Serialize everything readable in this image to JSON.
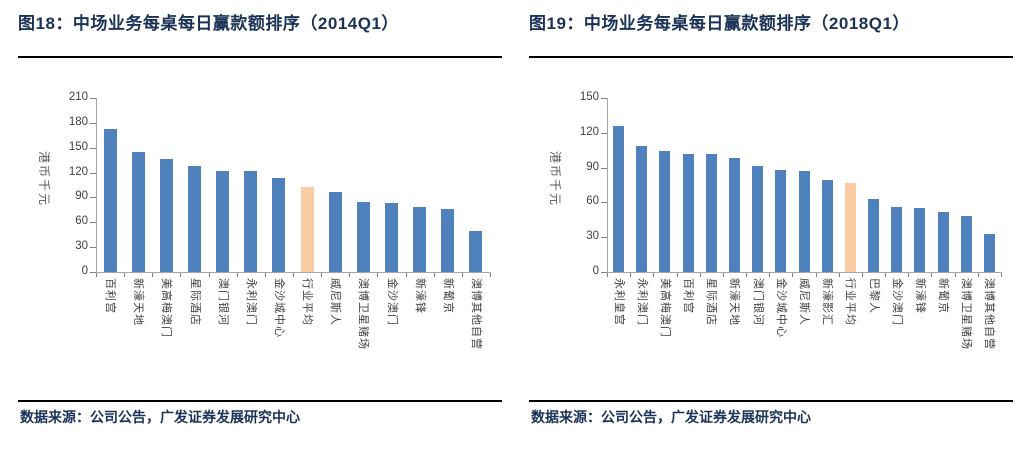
{
  "colors": {
    "bar": "#4f81bd",
    "highlight": "#fbcca3",
    "title_text": "#1b3256",
    "axis_line": "#a6a6a6",
    "tick_text": "#404040",
    "rule": "#000000"
  },
  "panels": [
    {
      "title": "图18：中场业务每桌每日赢款额排序（2014Q1）",
      "source": "数据来源：公司公告，广发证券发展研究中心"
    },
    {
      "title": "图19：中场业务每桌每日赢款额排序（2018Q1）",
      "source": "数据来源：公司公告，广发证券发展研究中心"
    }
  ],
  "chart_data": [
    {
      "type": "bar",
      "title": "图18：中场业务每桌每日赢款额排序（2014Q1）",
      "xlabel": "",
      "ylabel": "港币千元",
      "ylim": [
        0,
        210
      ],
      "ytick_step": 30,
      "grid": false,
      "legend": null,
      "categories": [
        "百利宫",
        "新濠天地",
        "美高梅澳门",
        "星际酒店",
        "澳门银河",
        "永利澳门",
        "金沙城中心",
        "行业平均",
        "威尼斯人",
        "澳博卫星赌场",
        "金沙澳门",
        "新濠锋",
        "新葡京",
        "澳博其他自营"
      ],
      "values": [
        172,
        145,
        136,
        128,
        122,
        122,
        113,
        102,
        96,
        84,
        83,
        78,
        76,
        50
      ],
      "highlight_index": 7,
      "highlight_category": "行业平均"
    },
    {
      "type": "bar",
      "title": "图19：中场业务每桌每日赢款额排序（2018Q1）",
      "xlabel": "",
      "ylabel": "港币千元",
      "ylim": [
        0,
        150
      ],
      "ytick_step": 30,
      "grid": false,
      "legend": null,
      "categories": [
        "永利皇宫",
        "永利澳门",
        "美高梅澳门",
        "百利宫",
        "星际酒店",
        "新濠天地",
        "澳门银河",
        "金沙城中心",
        "威尼斯人",
        "新濠影汇",
        "行业平均",
        "巴黎人",
        "金沙澳门",
        "新濠锋",
        "新葡京",
        "澳博卫星赌场",
        "澳博其他自营"
      ],
      "values": [
        126,
        109,
        104,
        102,
        102,
        98,
        91,
        88,
        87,
        79,
        77,
        63,
        56,
        55,
        52,
        48,
        33
      ],
      "highlight_index": 10,
      "highlight_category": "行业平均"
    }
  ]
}
